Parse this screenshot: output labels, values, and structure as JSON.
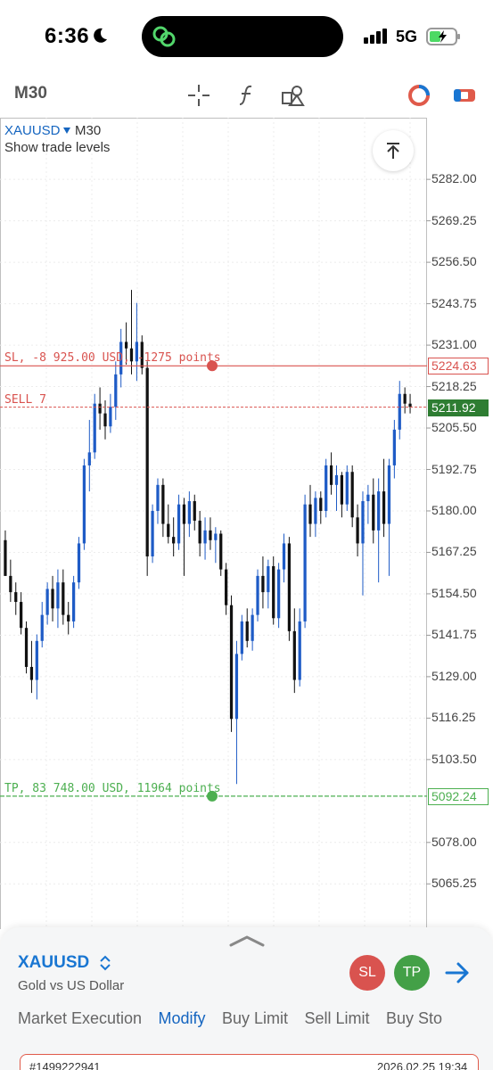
{
  "status_bar": {
    "time": "6:36",
    "network": "5G",
    "icons": [
      "moon-icon",
      "link-app-icon",
      "signal-icon",
      "battery-charging-icon"
    ]
  },
  "toolbar": {
    "timeframe": "M30",
    "icons": [
      "crosshair-icon",
      "indicator-function-icon",
      "drawing-objects-icon",
      "chart-color-icon",
      "trade-toggle-icon"
    ]
  },
  "chart": {
    "symbol": "XAUUSD",
    "timeframe": "M30",
    "subtitle": "Show trade levels",
    "price_labels": [
      "5282.00",
      "5269.25",
      "5256.50",
      "5243.75",
      "5231.00",
      "5218.25",
      "5205.50",
      "5192.75",
      "5180.00",
      "5167.25",
      "5154.50",
      "5141.75",
      "5129.00",
      "5116.25",
      "5103.50",
      "5078.00",
      "5065.25"
    ],
    "sl": {
      "text": "SL, -8 925.00 USD, -1275 points",
      "price": "5224.63",
      "color": "#d9534f"
    },
    "sell": {
      "text": "SELL 7",
      "price": "5211.92",
      "color": "#d9534f",
      "tag_bg": "#2e7d32"
    },
    "tp": {
      "text": "TP, 83 748.00 USD, 11964 points",
      "price": "5092.24",
      "color": "#4caf50"
    },
    "bull_color": "#1e5bc6",
    "bear_color": "#111111"
  },
  "chart_data": {
    "type": "candlestick",
    "series": [
      {
        "open": 5171,
        "high": 5174,
        "low": 5160,
        "close": 5160
      },
      {
        "open": 5160,
        "high": 5165,
        "low": 5152,
        "close": 5155
      },
      {
        "open": 5155,
        "high": 5158,
        "low": 5148,
        "close": 5152
      },
      {
        "open": 5152,
        "high": 5155,
        "low": 5142,
        "close": 5144
      },
      {
        "open": 5144,
        "high": 5146,
        "low": 5130,
        "close": 5132
      },
      {
        "open": 5132,
        "high": 5140,
        "low": 5124,
        "close": 5128
      },
      {
        "open": 5128,
        "high": 5142,
        "low": 5122,
        "close": 5140
      },
      {
        "open": 5140,
        "high": 5152,
        "low": 5138,
        "close": 5148
      },
      {
        "open": 5148,
        "high": 5158,
        "low": 5145,
        "close": 5156
      },
      {
        "open": 5156,
        "high": 5160,
        "low": 5146,
        "close": 5150
      },
      {
        "open": 5150,
        "high": 5162,
        "low": 5144,
        "close": 5158
      },
      {
        "open": 5158,
        "high": 5162,
        "low": 5145,
        "close": 5148
      },
      {
        "open": 5148,
        "high": 5152,
        "low": 5142,
        "close": 5146
      },
      {
        "open": 5146,
        "high": 5160,
        "low": 5144,
        "close": 5158
      },
      {
        "open": 5158,
        "high": 5172,
        "low": 5156,
        "close": 5170
      },
      {
        "open": 5170,
        "high": 5196,
        "low": 5168,
        "close": 5194
      },
      {
        "open": 5194,
        "high": 5208,
        "low": 5186,
        "close": 5198
      },
      {
        "open": 5198,
        "high": 5216,
        "low": 5196,
        "close": 5213
      },
      {
        "open": 5213,
        "high": 5218,
        "low": 5205,
        "close": 5210
      },
      {
        "open": 5210,
        "high": 5214,
        "low": 5202,
        "close": 5206
      },
      {
        "open": 5206,
        "high": 5216,
        "low": 5204,
        "close": 5212
      },
      {
        "open": 5212,
        "high": 5226,
        "low": 5208,
        "close": 5222
      },
      {
        "open": 5222,
        "high": 5236,
        "low": 5218,
        "close": 5232
      },
      {
        "open": 5232,
        "high": 5238,
        "low": 5225,
        "close": 5230
      },
      {
        "open": 5230,
        "high": 5248,
        "low": 5222,
        "close": 5226
      },
      {
        "open": 5226,
        "high": 5244,
        "low": 5220,
        "close": 5232
      },
      {
        "open": 5232,
        "high": 5234,
        "low": 5222,
        "close": 5224
      },
      {
        "open": 5224,
        "high": 5226,
        "low": 5160,
        "close": 5166
      },
      {
        "open": 5166,
        "high": 5182,
        "low": 5164,
        "close": 5180
      },
      {
        "open": 5180,
        "high": 5190,
        "low": 5176,
        "close": 5188
      },
      {
        "open": 5188,
        "high": 5190,
        "low": 5172,
        "close": 5176
      },
      {
        "open": 5176,
        "high": 5182,
        "low": 5170,
        "close": 5172
      },
      {
        "open": 5172,
        "high": 5178,
        "low": 5166,
        "close": 5170
      },
      {
        "open": 5170,
        "high": 5185,
        "low": 5168,
        "close": 5182
      },
      {
        "open": 5182,
        "high": 5184,
        "low": 5160,
        "close": 5176
      },
      {
        "open": 5176,
        "high": 5186,
        "low": 5172,
        "close": 5183
      },
      {
        "open": 5183,
        "high": 5185,
        "low": 5174,
        "close": 5177
      },
      {
        "open": 5177,
        "high": 5180,
        "low": 5166,
        "close": 5170
      },
      {
        "open": 5170,
        "high": 5178,
        "low": 5165,
        "close": 5174
      },
      {
        "open": 5174,
        "high": 5178,
        "low": 5168,
        "close": 5171
      },
      {
        "open": 5171,
        "high": 5175,
        "low": 5164,
        "close": 5173
      },
      {
        "open": 5173,
        "high": 5174,
        "low": 5160,
        "close": 5162
      },
      {
        "open": 5162,
        "high": 5164,
        "low": 5148,
        "close": 5151
      },
      {
        "open": 5151,
        "high": 5154,
        "low": 5112,
        "close": 5116
      },
      {
        "open": 5116,
        "high": 5140,
        "low": 5096,
        "close": 5136
      },
      {
        "open": 5136,
        "high": 5148,
        "low": 5134,
        "close": 5146
      },
      {
        "open": 5146,
        "high": 5150,
        "low": 5138,
        "close": 5140
      },
      {
        "open": 5140,
        "high": 5150,
        "low": 5137,
        "close": 5148
      },
      {
        "open": 5148,
        "high": 5162,
        "low": 5146,
        "close": 5160
      },
      {
        "open": 5160,
        "high": 5166,
        "low": 5150,
        "close": 5155
      },
      {
        "open": 5155,
        "high": 5165,
        "low": 5150,
        "close": 5163
      },
      {
        "open": 5163,
        "high": 5166,
        "low": 5145,
        "close": 5147
      },
      {
        "open": 5147,
        "high": 5164,
        "low": 5144,
        "close": 5162
      },
      {
        "open": 5162,
        "high": 5173,
        "low": 5158,
        "close": 5170
      },
      {
        "open": 5170,
        "high": 5172,
        "low": 5140,
        "close": 5143
      },
      {
        "open": 5143,
        "high": 5150,
        "low": 5124,
        "close": 5128
      },
      {
        "open": 5128,
        "high": 5150,
        "low": 5126,
        "close": 5146
      },
      {
        "open": 5146,
        "high": 5185,
        "low": 5144,
        "close": 5182
      },
      {
        "open": 5182,
        "high": 5188,
        "low": 5172,
        "close": 5176
      },
      {
        "open": 5176,
        "high": 5186,
        "low": 5172,
        "close": 5184
      },
      {
        "open": 5184,
        "high": 5186,
        "low": 5176,
        "close": 5180
      },
      {
        "open": 5180,
        "high": 5196,
        "low": 5178,
        "close": 5194
      },
      {
        "open": 5194,
        "high": 5198,
        "low": 5185,
        "close": 5188
      },
      {
        "open": 5188,
        "high": 5194,
        "low": 5180,
        "close": 5191
      },
      {
        "open": 5191,
        "high": 5192,
        "low": 5178,
        "close": 5182
      },
      {
        "open": 5182,
        "high": 5194,
        "low": 5180,
        "close": 5192
      },
      {
        "open": 5192,
        "high": 5194,
        "low": 5175,
        "close": 5178
      },
      {
        "open": 5178,
        "high": 5182,
        "low": 5166,
        "close": 5170
      },
      {
        "open": 5170,
        "high": 5186,
        "low": 5154,
        "close": 5183
      },
      {
        "open": 5183,
        "high": 5188,
        "low": 5176,
        "close": 5185
      },
      {
        "open": 5185,
        "high": 5190,
        "low": 5170,
        "close": 5174
      },
      {
        "open": 5174,
        "high": 5190,
        "low": 5158,
        "close": 5186
      },
      {
        "open": 5186,
        "high": 5196,
        "low": 5172,
        "close": 5176
      },
      {
        "open": 5176,
        "high": 5196,
        "low": 5160,
        "close": 5194
      },
      {
        "open": 5194,
        "high": 5208,
        "low": 5190,
        "close": 5205
      },
      {
        "open": 5205,
        "high": 5220,
        "low": 5202,
        "close": 5216
      },
      {
        "open": 5216,
        "high": 5218,
        "low": 5210,
        "close": 5213
      },
      {
        "open": 5213,
        "high": 5216,
        "low": 5210,
        "close": 5212
      }
    ],
    "ylim": [
      5056,
      5290
    ],
    "price_ticks": [
      5282.0,
      5269.25,
      5256.5,
      5243.75,
      5231.0,
      5218.25,
      5205.5,
      5192.75,
      5180.0,
      5167.25,
      5154.5,
      5141.75,
      5129.0,
      5116.25,
      5103.5,
      5078.0,
      5065.25
    ],
    "levels": {
      "sl": 5224.63,
      "sell": 5211.92,
      "tp": 5092.24
    },
    "grid": true
  },
  "panel": {
    "symbol": "XAUUSD",
    "description": "Gold vs US Dollar",
    "sl_button": "SL",
    "tp_button": "TP",
    "sl_color": "#d9534f",
    "tp_color": "#43a047",
    "tabs": [
      "Market Execution",
      "Modify",
      "Buy Limit",
      "Sell Limit",
      "Buy Sto"
    ],
    "active_tab": "Modify",
    "order_id": "#1499222941",
    "order_time": "2026.02.25 19:34"
  }
}
